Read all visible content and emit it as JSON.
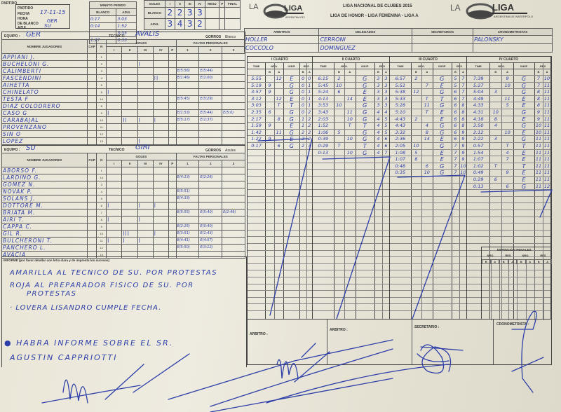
{
  "colors": {
    "ink": "#2c3ea8",
    "paper": "#ebe7da",
    "print": "#333333"
  },
  "header": {
    "partido_label": "PARTIDO",
    "fecha_label": "FECHA",
    "fecha": "17-11-15",
    "hora_label": "HORA",
    "de_blanco_label": "DE BLANCO",
    "de_blanco": "GER",
    "azul_label": "AZUL",
    "azul": "SU",
    "minuto_pedido": {
      "title": "MINUTO PEDIDO",
      "blanco_label": "BLANCO",
      "azul_label": "AZUL",
      "rows": [
        {
          "q": "1º",
          "blanco": "0:17",
          "azul": "3:03"
        },
        {
          "q": "2º",
          "blanco": "0:14",
          "azul": "1:52"
        },
        {
          "q": "3º",
          "blanco": "",
          "azul": "5:33"
        },
        {
          "q": "4º",
          "blanco": "1:27",
          "azul": "0:33"
        }
      ]
    },
    "goles": {
      "title": "GOLES",
      "cols": [
        "I",
        "II",
        "III",
        "IV",
        "RESU",
        "P",
        "FINAL"
      ],
      "blanco_label": "BLANCO",
      "azul_label": "AZUL",
      "blanco": [
        "2",
        "2",
        "3",
        "3"
      ],
      "azul": [
        "3",
        "4",
        "3",
        "2"
      ]
    },
    "league_title": "LIGA NACIONAL DE CLUBES 2015",
    "league_subtitle": "LIGA DE HONOR - LIGA FEMENINA - LIGA A",
    "logo_text": "LA LIGA ARGENTINA DE WATERPOLO"
  },
  "officials": {
    "arbitros_label": "ARBITROS",
    "arbitros": [
      "HOLLER",
      "COCCOLO"
    ],
    "delegados_label": "DELEGADOS",
    "delegados": [
      "CERRONI",
      "DOMINGUEZ"
    ],
    "secretarios_label": "SECRETARIOS",
    "secretarios": [
      "",
      ""
    ],
    "cronometristas_label": "CRONOMETRISTAS",
    "cronometristas": [
      "PALONSKY",
      ""
    ]
  },
  "roster_headers": {
    "nombre": "NOMBRE JUGADORES",
    "cap": "CAP",
    "n": "N",
    "goles": "GOLES",
    "faltas": "FALTAS PERSONALES",
    "q": [
      "I",
      "II",
      "III",
      "IV",
      "P"
    ],
    "f": [
      "1",
      "2",
      "3"
    ],
    "equipo": "EQUIPO :",
    "tecnico": "TECNICO",
    "gorros": "GORROS"
  },
  "team_blanco": {
    "equipo": "GER",
    "tecnico": "AVALIS",
    "gorros": "Blanco",
    "players": [
      {
        "n": "1",
        "name": "APPIANI J.",
        "goals": [
          "",
          "",
          "",
          "",
          ""
        ],
        "fouls": [
          "",
          "",
          ""
        ]
      },
      {
        "n": "2",
        "name": "BUCHELONI G.",
        "goals": [
          "",
          "",
          "|",
          "",
          ""
        ],
        "fouls": [
          "",
          "",
          ""
        ]
      },
      {
        "n": "3",
        "name": "CALIMBERTI",
        "goals": [
          "",
          "",
          "",
          "",
          ""
        ],
        "fouls": [
          "E(5:56)",
          "E(5:44)",
          ""
        ]
      },
      {
        "n": "4",
        "name": "FASCENDINI",
        "goals": [
          "",
          "",
          "",
          "||",
          ""
        ],
        "fouls": [
          "E(1:46)",
          "E(1:00)",
          ""
        ]
      },
      {
        "n": "5",
        "name": "AIHETTA",
        "goals": [
          "",
          "",
          "",
          "",
          ""
        ],
        "fouls": [
          "",
          "",
          ""
        ]
      },
      {
        "n": "6",
        "name": "CHINELATO",
        "goals": [
          "|",
          "",
          "",
          "",
          ""
        ],
        "fouls": [
          "",
          "",
          ""
        ]
      },
      {
        "n": "14",
        "name": "TESTA F",
        "goals": [
          "",
          "",
          "",
          "",
          ""
        ],
        "fouls": [
          "E(5:45)",
          "E(5:29)",
          ""
        ]
      },
      {
        "n": "8",
        "name": "DIAZ COLODRERO",
        "goals": [
          "",
          "",
          "",
          "",
          ""
        ],
        "fouls": [
          "",
          "",
          ""
        ]
      },
      {
        "n": "9",
        "name": "CASO G",
        "goals": [
          "|",
          "",
          "",
          "",
          ""
        ],
        "fouls": [
          "E(1:53)",
          "E(5:44)",
          "E(5:0)"
        ]
      },
      {
        "n": "10",
        "name": "CARABAJAL",
        "goals": [
          "",
          "||",
          "|",
          "|",
          ""
        ],
        "fouls": [
          "E(5:17)",
          "E(1:37)",
          ""
        ]
      },
      {
        "n": "11",
        "name": "PROVENZANO",
        "goals": [
          "",
          "",
          "",
          "",
          ""
        ],
        "fouls": [
          "",
          "",
          ""
        ]
      },
      {
        "n": "12",
        "name": "SIN O",
        "goals": [
          "",
          "",
          "",
          "",
          ""
        ],
        "fouls": [
          "",
          "",
          ""
        ]
      },
      {
        "n": "13",
        "name": "LOPEZ",
        "goals": [
          "",
          "",
          "|",
          "",
          ""
        ],
        "fouls": [
          "",
          "",
          ""
        ]
      }
    ]
  },
  "team_azul": {
    "equipo": "SU",
    "tecnico": "GIRI",
    "gorros": "Azules",
    "players": [
      {
        "n": "1",
        "name": "ABORSO F.",
        "goals": [
          "",
          "",
          "",
          "",
          ""
        ],
        "fouls": [
          "",
          "",
          ""
        ]
      },
      {
        "n": "14",
        "name": "LARDINO G.",
        "goals": [
          "",
          "",
          "",
          "",
          ""
        ],
        "fouls": [
          "E(4:13)",
          "E(2:26)",
          ""
        ]
      },
      {
        "n": "3",
        "name": "GOMEZ N.",
        "goals": [
          "",
          "",
          "",
          "",
          ""
        ],
        "fouls": [
          "",
          "",
          ""
        ]
      },
      {
        "n": "4",
        "name": "NOVAK P.",
        "goals": [
          "",
          "",
          "",
          "",
          ""
        ],
        "fouls": [
          "E(5:51)",
          "",
          ""
        ]
      },
      {
        "n": "5",
        "name": "SOLANS J.",
        "goals": [
          "",
          "",
          "",
          "",
          ""
        ],
        "fouls": [
          "E(4:33)",
          "",
          ""
        ]
      },
      {
        "n": "6",
        "name": "DOTTORE M.",
        "goals": [
          "|",
          "",
          "|",
          "|",
          ""
        ],
        "fouls": [
          "",
          "",
          ""
        ]
      },
      {
        "n": "7",
        "name": "BRIATA M.",
        "goals": [
          "",
          "",
          "",
          "",
          ""
        ],
        "fouls": [
          "E(5:55)",
          "E(5:40)",
          "E(2:49)"
        ]
      },
      {
        "n": "8",
        "name": "AIRI T.",
        "goals": [
          "|",
          "",
          "|",
          "",
          ""
        ],
        "fouls": [
          "",
          "",
          ""
        ]
      },
      {
        "n": "9",
        "name": "CAPPA C.",
        "goals": [
          "",
          "",
          "",
          "",
          ""
        ],
        "fouls": [
          "E(2:25)",
          "E(0:40)",
          ""
        ]
      },
      {
        "n": "10",
        "name": "GIL R.",
        "goals": [
          "",
          "|||",
          "",
          "|",
          ""
        ],
        "fouls": [
          "E(3:51)",
          "E(1:43)",
          ""
        ]
      },
      {
        "n": "11",
        "name": "BULCHERONI T.",
        "goals": [
          "|",
          "|",
          "|",
          "",
          ""
        ],
        "fouls": [
          "E(4:41)",
          "E(4:57)",
          ""
        ]
      },
      {
        "n": "12",
        "name": "PANCHERO L.",
        "goals": [
          "",
          "",
          "",
          "",
          ""
        ],
        "fouls": [
          "E(5:50)",
          "E(3:12)",
          ""
        ]
      },
      {
        "n": "15",
        "name": "AVACIA",
        "goals": [
          "",
          "",
          "",
          "",
          ""
        ],
        "fouls": [
          "",
          "",
          ""
        ]
      }
    ]
  },
  "informe": {
    "label": "INFORME (por favor detallar con letra clara y de imprenta los sucesos)",
    "lines": [
      "AMARILLA AL TECNICO DE SU. POR PROTESTAS",
      "ROJA AL PREPARADOR FISICO DE SU. POR",
      "PROTESTAS",
      "· LOVERA LISANDRO CUMPLE FECHA.",
      "● HABRA INFORME SOBRE EL SR.",
      "AGUSTIN CAPPRIOTTI"
    ]
  },
  "quarters": {
    "col_labels": {
      "time": "TIME",
      "nro": "Nro.",
      "gep": "G/E/P",
      "res": "RES",
      "b": "B",
      "a": "A"
    },
    "items": [
      {
        "title": "I CUARTO",
        "rows": [
          [
            "5:55",
            "",
            "12",
            "E",
            "0",
            "0"
          ],
          [
            "5:19",
            "9",
            "",
            "G",
            "0",
            "1"
          ],
          [
            "3:57",
            "9",
            "",
            "G",
            "0",
            "1"
          ],
          [
            "3:12",
            "",
            "12",
            "E",
            "0",
            "1"
          ],
          [
            "3:03",
            "",
            "T",
            "T",
            "0",
            "1"
          ],
          [
            "2:35",
            "6",
            "",
            "G",
            "0",
            "2"
          ],
          [
            "2:17",
            "",
            "8",
            "G",
            "1",
            "2"
          ],
          [
            "1:59",
            "9",
            "",
            "E",
            "1",
            "2"
          ],
          [
            "1:42",
            "",
            "11",
            "G",
            "2",
            "2"
          ],
          [
            "1:22",
            "9",
            "",
            "E",
            "2",
            "2"
          ],
          [
            "0:17",
            "",
            "6",
            "G",
            "2",
            "3"
          ]
        ]
      },
      {
        "title": "II CUARTO",
        "rows": [
          [
            "6:15",
            "2",
            "",
            "G",
            "3",
            "3"
          ],
          [
            "5:45",
            "10",
            "",
            "G",
            "3",
            "3"
          ],
          [
            "5:24",
            "6",
            "",
            "E",
            "3",
            "3"
          ],
          [
            "4:13",
            "",
            "14",
            "E",
            "3",
            "3"
          ],
          [
            "3:53",
            "10",
            "",
            "G",
            "3",
            "3"
          ],
          [
            "3:43",
            "",
            "11",
            "G",
            "4",
            "4"
          ],
          [
            "2:03",
            "",
            "10",
            "G",
            "4",
            "5"
          ],
          [
            "1:52",
            "",
            "T",
            "T",
            "4",
            "5"
          ],
          [
            "1:06",
            "5",
            "",
            "G",
            "4",
            "5"
          ],
          [
            "0:39",
            "",
            "10",
            "G",
            "4",
            "6"
          ],
          [
            "0:29",
            "T",
            "",
            "T",
            "4",
            "6"
          ],
          [
            "0:13",
            "",
            "10",
            "G",
            "4",
            "7"
          ]
        ]
      },
      {
        "title": "III CUARTO",
        "rows": [
          [
            "6:57",
            "2",
            "",
            "G",
            "5",
            "7"
          ],
          [
            "5:51",
            "",
            "7",
            "E",
            "5",
            "7"
          ],
          [
            "5:38",
            "12",
            "",
            "G",
            "6",
            "7"
          ],
          [
            "5:33",
            "",
            "T",
            "T",
            "6",
            "7"
          ],
          [
            "5:28",
            "",
            "11",
            "G",
            "6",
            "8"
          ],
          [
            "5:10",
            "",
            "T",
            "E",
            "6",
            "8"
          ],
          [
            "4:43",
            "2",
            "",
            "E",
            "6",
            "8"
          ],
          [
            "4:43",
            "",
            "4",
            "G",
            "6",
            "8"
          ],
          [
            "3:32",
            "",
            "8",
            "G",
            "6",
            "9"
          ],
          [
            "2:36",
            "",
            "14",
            "E",
            "6",
            "9"
          ],
          [
            "2:05",
            "10",
            "",
            "G",
            "7",
            "9"
          ],
          [
            "1:08",
            "5",
            "",
            "E",
            "7",
            "9"
          ],
          [
            "1:07",
            "8",
            "",
            "E",
            "7",
            "9"
          ],
          [
            "0:48",
            "",
            "6",
            "G",
            "7",
            "10"
          ],
          [
            "0:35",
            "",
            "10",
            "G",
            "7",
            "10"
          ]
        ]
      },
      {
        "title": "IV CUARTO",
        "rows": [
          [
            "7:39",
            "",
            "9",
            "G",
            "7",
            "10"
          ],
          [
            "5:27",
            "",
            "10",
            "G",
            "7",
            "11"
          ],
          [
            "5:04",
            "3",
            "",
            "G",
            "8",
            "11"
          ],
          [
            "4:49",
            "",
            "11",
            "E",
            "8",
            "11"
          ],
          [
            "4:33",
            "",
            "5",
            "E",
            "8",
            "11"
          ],
          [
            "4:31",
            "10",
            "",
            "G",
            "9",
            "11"
          ],
          [
            "4:18",
            "8",
            "",
            "E",
            "9",
            "11"
          ],
          [
            "3:50",
            "4",
            "",
            "G",
            "10",
            "11"
          ],
          [
            "2:12",
            "",
            "10",
            "E",
            "10",
            "11"
          ],
          [
            "2:22",
            "3",
            "",
            "G",
            "11",
            "11"
          ],
          [
            "0:57",
            "",
            "T",
            "T",
            "11",
            "11"
          ],
          [
            "1:54",
            "",
            "4",
            "E",
            "11",
            "11"
          ],
          [
            "1:07",
            "",
            "7",
            "E",
            "11",
            "11"
          ],
          [
            "1:02",
            "T",
            "",
            "T",
            "11",
            "11"
          ],
          [
            "0:49",
            "",
            "9",
            "E",
            "11",
            "11"
          ],
          [
            "0:29",
            "6",
            "",
            "E",
            "11",
            "11"
          ],
          [
            "0:13",
            "",
            "6",
            "G",
            "11",
            "12"
          ]
        ]
      }
    ]
  },
  "penales": {
    "title": "DEFINICION PENALES",
    "cols": [
      "Nro.",
      "RES",
      "Nro.",
      "RES"
    ],
    "sub": [
      "B",
      "A",
      "B",
      "A",
      "B",
      "A",
      "B",
      "A"
    ]
  },
  "signatures": {
    "arbitro1": "ARBITRO :",
    "arbitro2": "ARBITRO :",
    "secretario": "SECRETARIO :",
    "cronometrista": "CRONOMETRISTA :"
  }
}
